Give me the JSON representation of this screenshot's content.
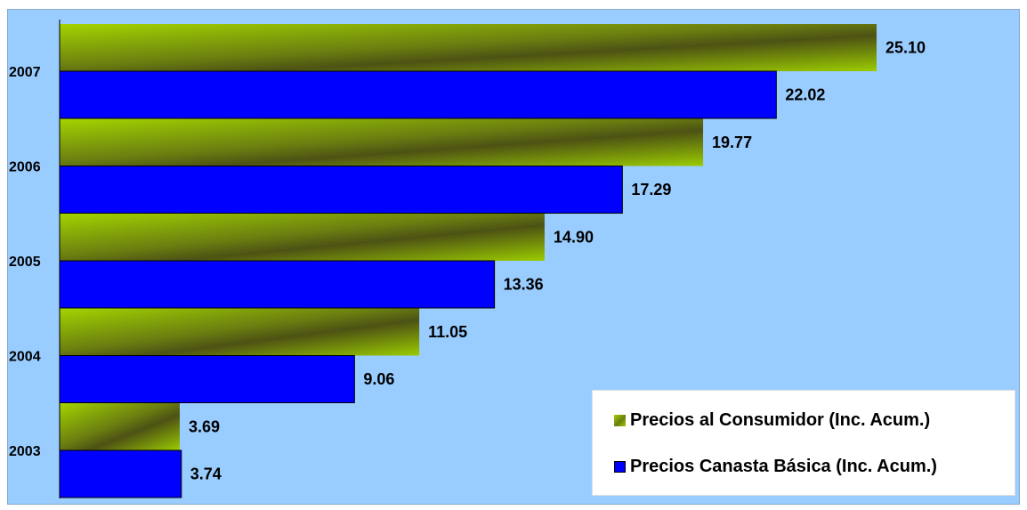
{
  "chart_data": {
    "type": "bar",
    "orientation": "horizontal",
    "categories": [
      "2003",
      "2004",
      "2005",
      "2006",
      "2007"
    ],
    "series": [
      {
        "name": "Precios al Consumidor (Inc. Acum.)",
        "values": [
          3.69,
          11.05,
          14.9,
          19.77,
          25.1
        ],
        "labels": [
          "3.69",
          "11.05",
          "14.90",
          "19.77",
          "25.10"
        ],
        "color": "#99cc00"
      },
      {
        "name": "Precios Canasta Básica (Inc. Acum.)",
        "values": [
          3.74,
          9.06,
          13.36,
          17.29,
          22.02
        ],
        "labels": [
          "3.74",
          "9.06",
          "13.36",
          "17.29",
          "22.02"
        ],
        "color": "#0000ff"
      }
    ],
    "xlim": [
      0,
      28.3
    ],
    "grid": false,
    "legend_position": "bottom-right",
    "background": "#99ccff"
  }
}
